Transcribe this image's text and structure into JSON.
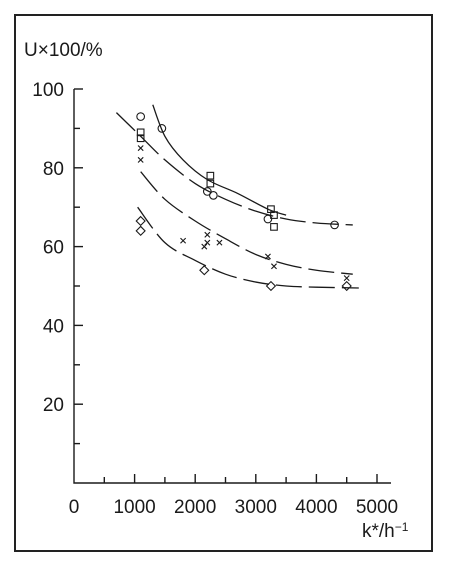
{
  "chart_data": {
    "type": "scatter",
    "title": "",
    "ylabel": "U×100/%",
    "xlabel_main": "k*/h",
    "xlabel_sup": "−1",
    "xlim": [
      0,
      5000
    ],
    "ylim": [
      0,
      100
    ],
    "x_ticks": [
      0,
      1000,
      2000,
      3000,
      4000,
      5000
    ],
    "x_tick_labels": [
      "0",
      "1000",
      "2000",
      "3000",
      "4000",
      "5000"
    ],
    "y_ticks": [
      20,
      40,
      60,
      80,
      100
    ],
    "y_tick_labels": [
      "20",
      "40",
      "60",
      "80",
      "100"
    ],
    "grid": false,
    "series": [
      {
        "marker": "circle",
        "points": [
          [
            1100,
            93
          ],
          [
            1450,
            90
          ],
          [
            2200,
            74
          ],
          [
            2300,
            73
          ],
          [
            3200,
            67
          ],
          [
            4300,
            65.5
          ]
        ]
      },
      {
        "marker": "square",
        "points": [
          [
            1100,
            89
          ],
          [
            1100,
            87.5
          ],
          [
            2250,
            78
          ],
          [
            2250,
            76
          ],
          [
            3250,
            69.5
          ],
          [
            3300,
            68
          ],
          [
            3300,
            65
          ]
        ]
      },
      {
        "marker": "cross",
        "points": [
          [
            1100,
            85
          ],
          [
            1100,
            82
          ],
          [
            1800,
            61.5
          ],
          [
            2150,
            60
          ],
          [
            2200,
            63
          ],
          [
            2200,
            61
          ],
          [
            2400,
            61
          ],
          [
            3200,
            57.5
          ],
          [
            3300,
            55
          ],
          [
            4500,
            52
          ]
        ]
      },
      {
        "marker": "diamond",
        "points": [
          [
            1100,
            66.5
          ],
          [
            1100,
            64
          ],
          [
            2150,
            54
          ],
          [
            3250,
            50
          ],
          [
            4500,
            50
          ]
        ]
      }
    ],
    "curves": [
      {
        "points": [
          [
            1300,
            96
          ],
          [
            1500,
            88
          ],
          [
            1800,
            82
          ],
          [
            2200,
            77
          ],
          [
            2700,
            73.5
          ],
          [
            3200,
            69.5
          ],
          [
            3500,
            68
          ]
        ],
        "dash": "none"
      },
      {
        "points": [
          [
            700,
            94
          ],
          [
            1100,
            88
          ],
          [
            1500,
            82
          ],
          [
            2000,
            76
          ],
          [
            2500,
            72
          ],
          [
            3000,
            69
          ],
          [
            3500,
            67
          ],
          [
            4000,
            66
          ],
          [
            4600,
            65.5
          ]
        ],
        "dash": "26 7"
      },
      {
        "points": [
          [
            1100,
            79
          ],
          [
            1500,
            72
          ],
          [
            2000,
            66.5
          ],
          [
            2500,
            62
          ],
          [
            3000,
            58
          ],
          [
            3500,
            55.5
          ],
          [
            4000,
            54
          ],
          [
            4600,
            53
          ]
        ],
        "dash": "26 7"
      },
      {
        "points": [
          [
            1050,
            70
          ],
          [
            1500,
            61
          ],
          [
            2000,
            56.5
          ],
          [
            2500,
            53
          ],
          [
            3000,
            51
          ],
          [
            3500,
            50
          ],
          [
            4000,
            49.7
          ],
          [
            4700,
            49.5
          ]
        ],
        "dash": "26 7"
      }
    ]
  }
}
